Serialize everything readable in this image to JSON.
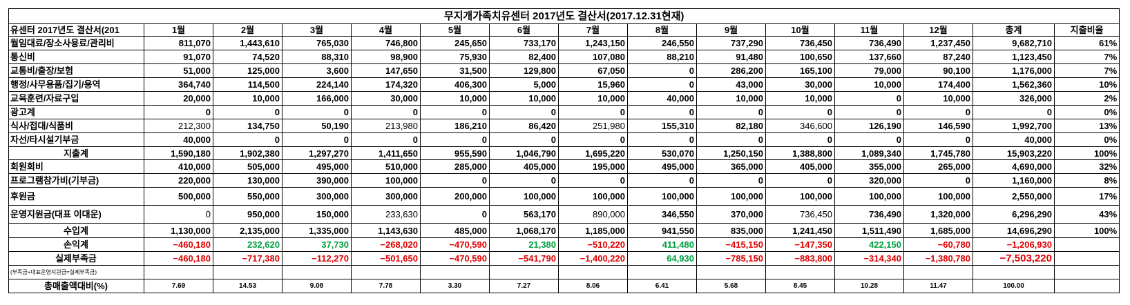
{
  "title": "무지개가족치유센터 2017년도 결산서(2017.12.31현재)",
  "header": [
    "유센터 2017년도 결산서(201",
    "1월",
    "2월",
    "3월",
    "4월",
    "5월",
    "6월",
    "7월",
    "8월",
    "9월",
    "10월",
    "11월",
    "12월",
    "총계",
    "지출비율"
  ],
  "rows": [
    {
      "label": "월임대료/장소사용료/관리비",
      "align": "left",
      "cells": [
        "811,070",
        "1,443,610",
        "765,030",
        "746,800",
        "245,650",
        "733,170",
        "1,243,150",
        "246,550",
        "737,290",
        "736,450",
        "736,490",
        "1,237,450",
        "9,682,710",
        "61%"
      ]
    },
    {
      "label": "통신비",
      "align": "left",
      "cells": [
        "91,070",
        "74,520",
        "88,310",
        "98,900",
        "75,930",
        "82,400",
        "107,080",
        "88,210",
        "91,480",
        "100,650",
        "137,660",
        "87,240",
        "1,123,450",
        "7%"
      ]
    },
    {
      "label": "교통비/출장/보험",
      "align": "left",
      "cells": [
        "51,000",
        "125,000",
        "3,600",
        "147,650",
        "31,500",
        "129,800",
        "67,050",
        "0",
        "286,200",
        "165,100",
        "79,000",
        "90,100",
        "1,176,000",
        "7%"
      ]
    },
    {
      "label": "행정/사무용품/집기/용역",
      "align": "left",
      "cells": [
        "364,740",
        "114,500",
        "224,140",
        "174,320",
        "406,300",
        "5,000",
        "15,960",
        "0",
        "43,000",
        "30,000",
        "10,000",
        "174,400",
        "1,562,360",
        "10%"
      ]
    },
    {
      "label": "교육훈련/자료구입",
      "align": "left",
      "cells": [
        "20,000",
        "10,000",
        "166,000",
        "30,000",
        "10,000",
        "10,000",
        "10,000",
        "40,000",
        "10,000",
        "10,000",
        "0",
        "10,000",
        "326,000",
        "2%"
      ]
    },
    {
      "label": "광고계",
      "align": "left",
      "cells": [
        "0",
        "0",
        "0",
        "0",
        "0",
        "0",
        "0",
        "0",
        "0",
        "0",
        "0",
        "0",
        "0",
        "0%"
      ]
    },
    {
      "label": "식사/접대/식품비",
      "align": "left",
      "cells": [
        "212,300",
        "134,750",
        "50,190",
        "213,980",
        "186,210",
        "86,420",
        "251,980",
        "155,310",
        "82,180",
        "346,600",
        "126,190",
        "146,590",
        "1,992,700",
        "13%"
      ]
    },
    {
      "label": "자선/타시설기부금",
      "align": "left",
      "cells": [
        "40,000",
        "0",
        "0",
        "0",
        "0",
        "0",
        "0",
        "0",
        "0",
        "0",
        "0",
        "0",
        "40,000",
        "0%"
      ]
    },
    {
      "label": "지출계",
      "align": "center",
      "cells": [
        "1,590,180",
        "1,902,380",
        "1,297,270",
        "1,411,650",
        "955,590",
        "1,046,790",
        "1,695,220",
        "530,070",
        "1,250,150",
        "1,388,800",
        "1,089,340",
        "1,745,780",
        "15,903,220",
        "100%"
      ]
    },
    {
      "label": "회원회비",
      "align": "left",
      "cells": [
        "410,000",
        "505,000",
        "495,000",
        "510,000",
        "285,000",
        "405,000",
        "195,000",
        "495,000",
        "365,000",
        "405,000",
        "355,000",
        "265,000",
        "4,690,000",
        "32%"
      ]
    },
    {
      "label": "프로그램참가비(기부금)",
      "align": "left",
      "cells": [
        "220,000",
        "130,000",
        "390,000",
        "100,000",
        "0",
        "0",
        "0",
        "0",
        "0",
        "0",
        "320,000",
        "0",
        "1,160,000",
        "8%"
      ]
    },
    {
      "label": "후원금",
      "align": "left",
      "cells": [
        "500,000",
        "550,000",
        "300,000",
        "300,000",
        "200,000",
        "100,000",
        "100,000",
        "100,000",
        "100,000",
        "100,000",
        "100,000",
        "100,000",
        "2,550,000",
        "17%"
      ]
    },
    {
      "label": "운영지원금(대표 이대운)",
      "align": "left",
      "cells": [
        "0",
        "950,000",
        "150,000",
        "233,630",
        "0",
        "563,170",
        "890,000",
        "346,550",
        "370,000",
        "736,450",
        "736,490",
        "1,320,000",
        "6,296,290",
        "43%"
      ]
    },
    {
      "label": "수입계",
      "align": "center",
      "cells": [
        "1,130,000",
        "2,135,000",
        "1,335,000",
        "1,143,630",
        "485,000",
        "1,068,170",
        "1,185,000",
        "941,550",
        "835,000",
        "1,241,450",
        "1,511,490",
        "1,685,000",
        "14,696,290",
        "100%"
      ]
    },
    {
      "label": "손익계",
      "align": "center",
      "cells": [
        "−460,180",
        "232,620",
        "37,730",
        "−268,020",
        "−470,590",
        "21,380",
        "−510,220",
        "411,480",
        "−415,150",
        "−147,350",
        "422,150",
        "−60,780",
        "−1,206,930",
        ""
      ]
    },
    {
      "label": "실제부족금",
      "align": "center",
      "cells": [
        "−460,180",
        "−717,380",
        "−112,270",
        "−501,650",
        "−470,590",
        "−541,790",
        "−1,400,220",
        "64,930",
        "−785,150",
        "−883,800",
        "−314,340",
        "−1,380,780",
        "−7,503,220",
        ""
      ]
    }
  ],
  "note": "(부족금+대표운영지원금=실제부족금)",
  "ratio_row": {
    "label": "총매출액대비(%)",
    "cells": [
      "7.69",
      "14.53",
      "9.08",
      "7.78",
      "3.30",
      "7.27",
      "8.06",
      "6.41",
      "5.68",
      "8.45",
      "10.28",
      "11.47",
      "100.00",
      ""
    ]
  },
  "colors": {
    "negative": "#e00000",
    "positive": "#00a040",
    "grid": "#000000"
  }
}
